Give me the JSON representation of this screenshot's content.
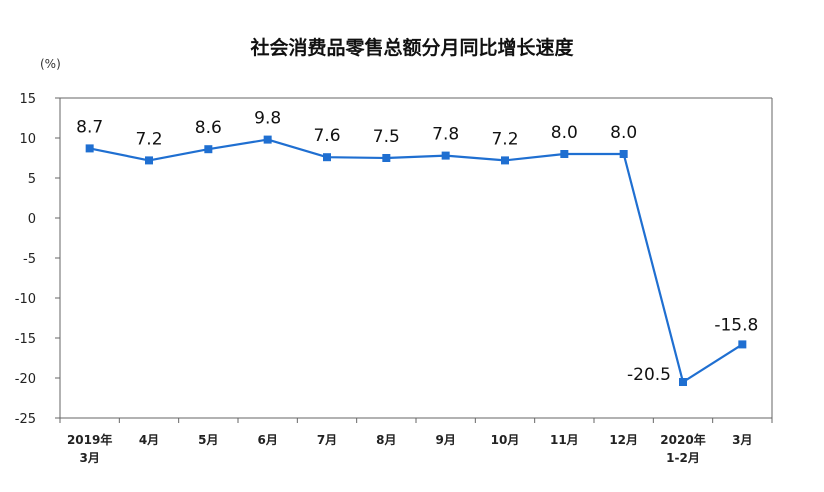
{
  "chart_data": {
    "type": "line",
    "title": "社会消费品零售总额分月同比增长速度",
    "ylabel": "(%)",
    "xlabel": "",
    "ylim": [
      -25,
      15
    ],
    "yticks": [
      15,
      10,
      5,
      0,
      -5,
      -10,
      -15,
      -20,
      -25
    ],
    "grid": false,
    "legend": "none",
    "color": "#1f6fd1",
    "categories": [
      {
        "line1": "2019年",
        "line2": "3月"
      },
      {
        "line1": "4月",
        "line2": ""
      },
      {
        "line1": "5月",
        "line2": ""
      },
      {
        "line1": "6月",
        "line2": ""
      },
      {
        "line1": "7月",
        "line2": ""
      },
      {
        "line1": "8月",
        "line2": ""
      },
      {
        "line1": "9月",
        "line2": ""
      },
      {
        "line1": "10月",
        "line2": ""
      },
      {
        "line1": "11月",
        "line2": ""
      },
      {
        "line1": "12月",
        "line2": ""
      },
      {
        "line1": "2020年",
        "line2": "1-2月"
      },
      {
        "line1": "3月",
        "line2": ""
      }
    ],
    "values": [
      8.7,
      7.2,
      8.6,
      9.8,
      7.6,
      7.5,
      7.8,
      7.2,
      8.0,
      8.0,
      -20.5,
      -15.8
    ],
    "labels": [
      "8.7",
      "7.2",
      "8.6",
      "9.8",
      "7.6",
      "7.5",
      "7.8",
      "7.2",
      "8.0",
      "8.0",
      "-20.5",
      "-15.8"
    ]
  }
}
